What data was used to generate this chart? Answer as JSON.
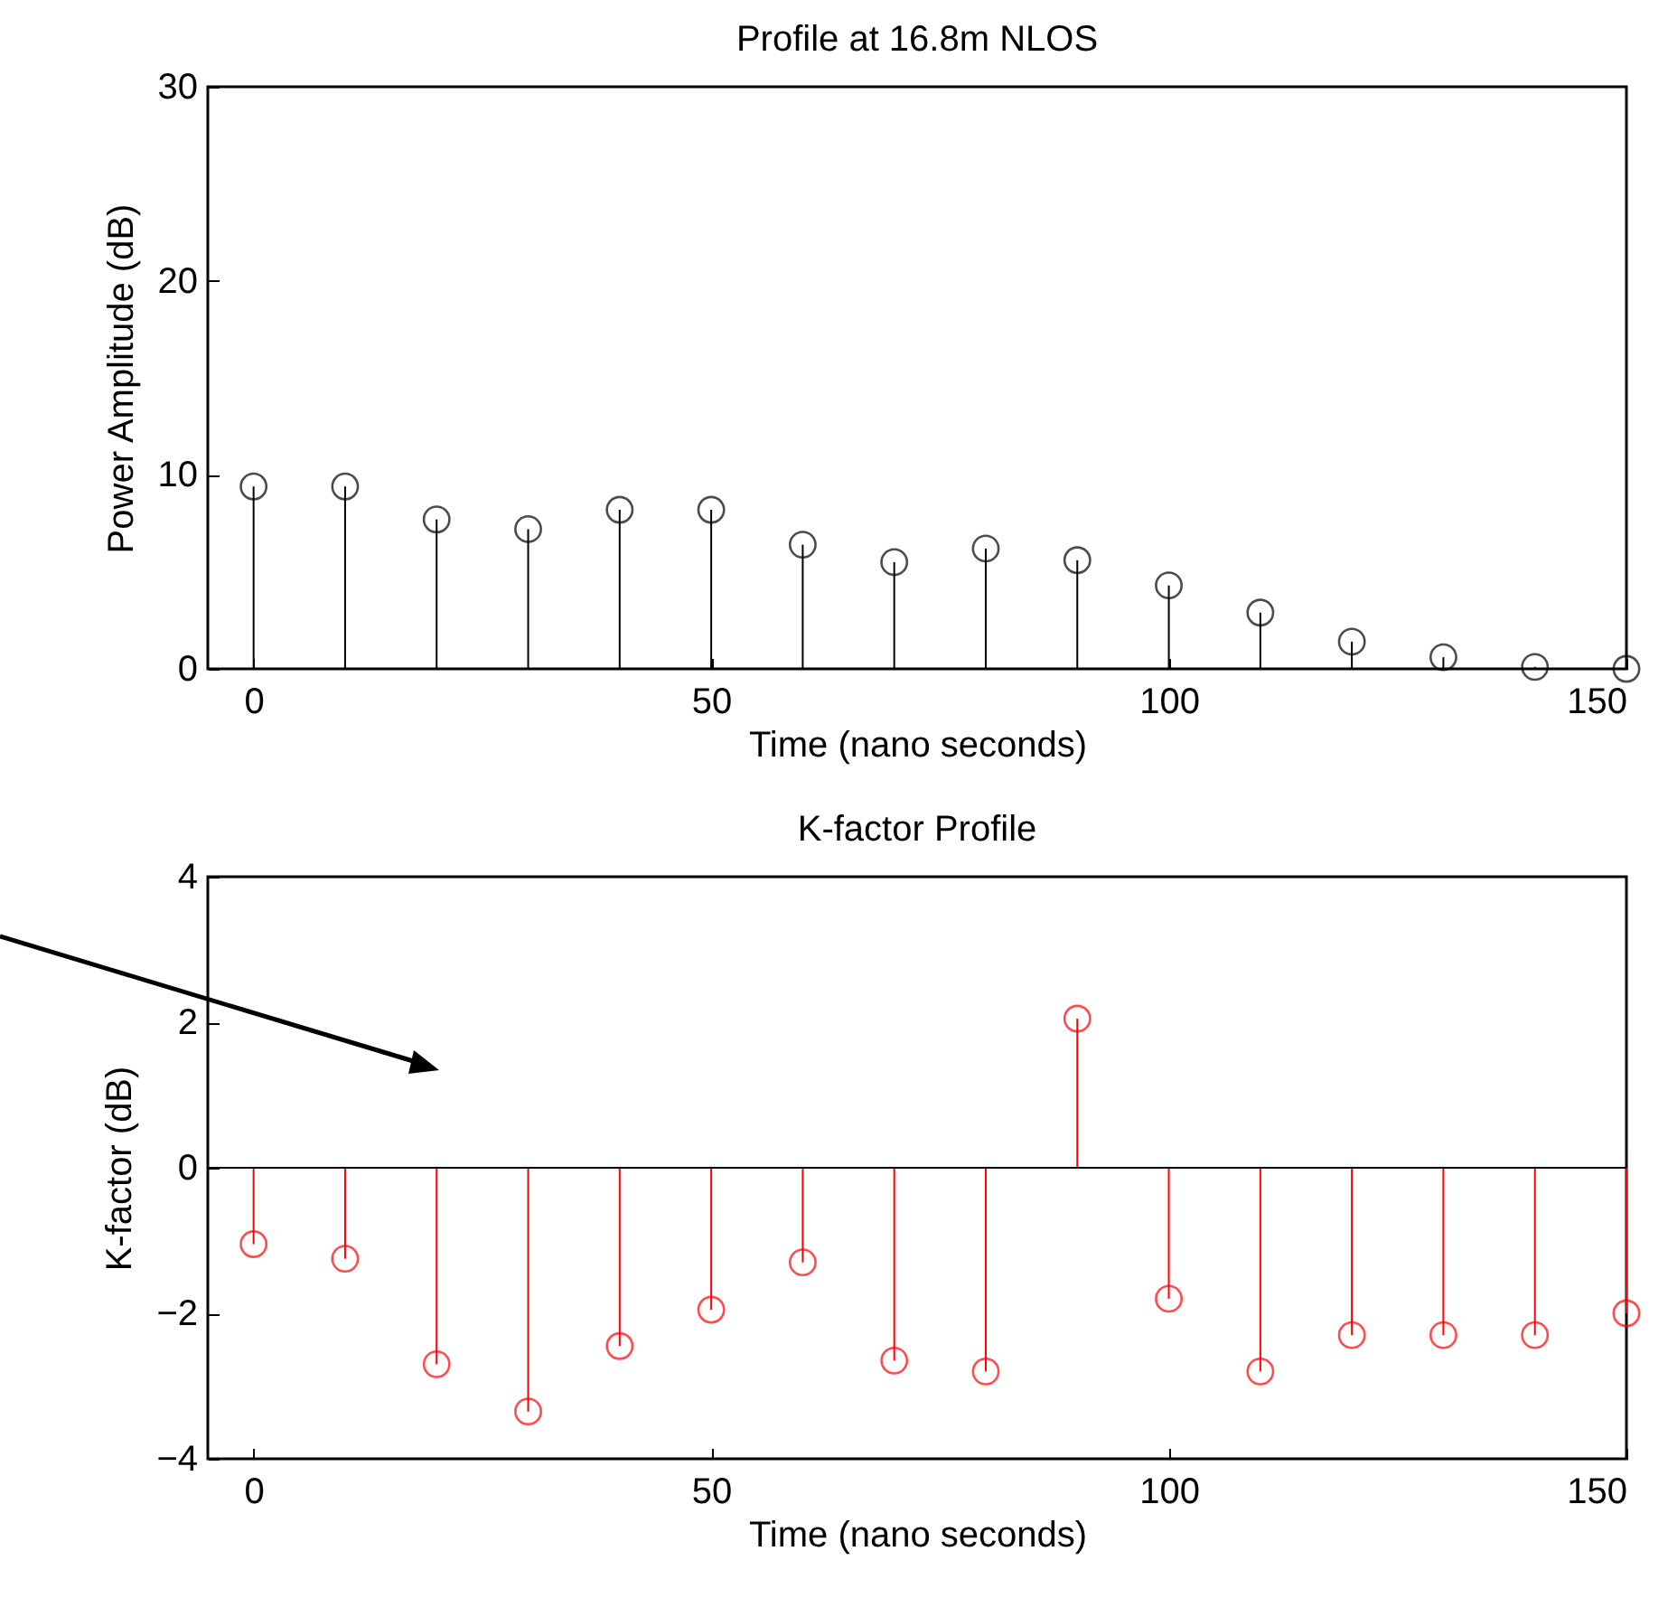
{
  "chart_data": [
    {
      "type": "lollipop",
      "title": "Profile at  16.8m  NLOS",
      "xlabel": "Time (nano seconds)",
      "ylabel": "Power Amplitude (dB)",
      "marker": "circle",
      "color": "#000000",
      "x": [
        0,
        10,
        20,
        30,
        40,
        50,
        60,
        70,
        80,
        90,
        100,
        110,
        120,
        130,
        140,
        150
      ],
      "values": [
        9.4,
        9.4,
        7.7,
        7.2,
        8.2,
        8.2,
        6.4,
        5.5,
        6.2,
        5.6,
        4.3,
        2.9,
        1.4,
        0.6,
        0.1,
        0
      ],
      "xlim": [
        -5,
        150
      ],
      "xticks": [
        0,
        50,
        100,
        150
      ],
      "ylim": [
        0,
        30
      ],
      "yticks": [
        0,
        10,
        20,
        30
      ]
    },
    {
      "type": "lollipop",
      "title": "K-factor Profile",
      "xlabel": "Time (nano seconds)",
      "ylabel": "K-factor (dB)",
      "marker": "circle",
      "color": "#ff0000",
      "x": [
        0,
        10,
        20,
        30,
        40,
        50,
        60,
        70,
        80,
        90,
        100,
        110,
        120,
        130,
        140,
        150
      ],
      "values": [
        -1.05,
        -1.25,
        -2.7,
        -3.35,
        -2.45,
        -1.95,
        -1.3,
        -2.65,
        -2.8,
        2.05,
        -1.8,
        -2.8,
        -2.3,
        -2.3,
        -2.3,
        -2.0
      ],
      "xlim": [
        -5,
        150
      ],
      "xticks": [
        0,
        50,
        100,
        150
      ],
      "ylim": [
        -4,
        4
      ],
      "yticks": [
        -4,
        -2,
        0,
        2,
        4
      ]
    }
  ]
}
